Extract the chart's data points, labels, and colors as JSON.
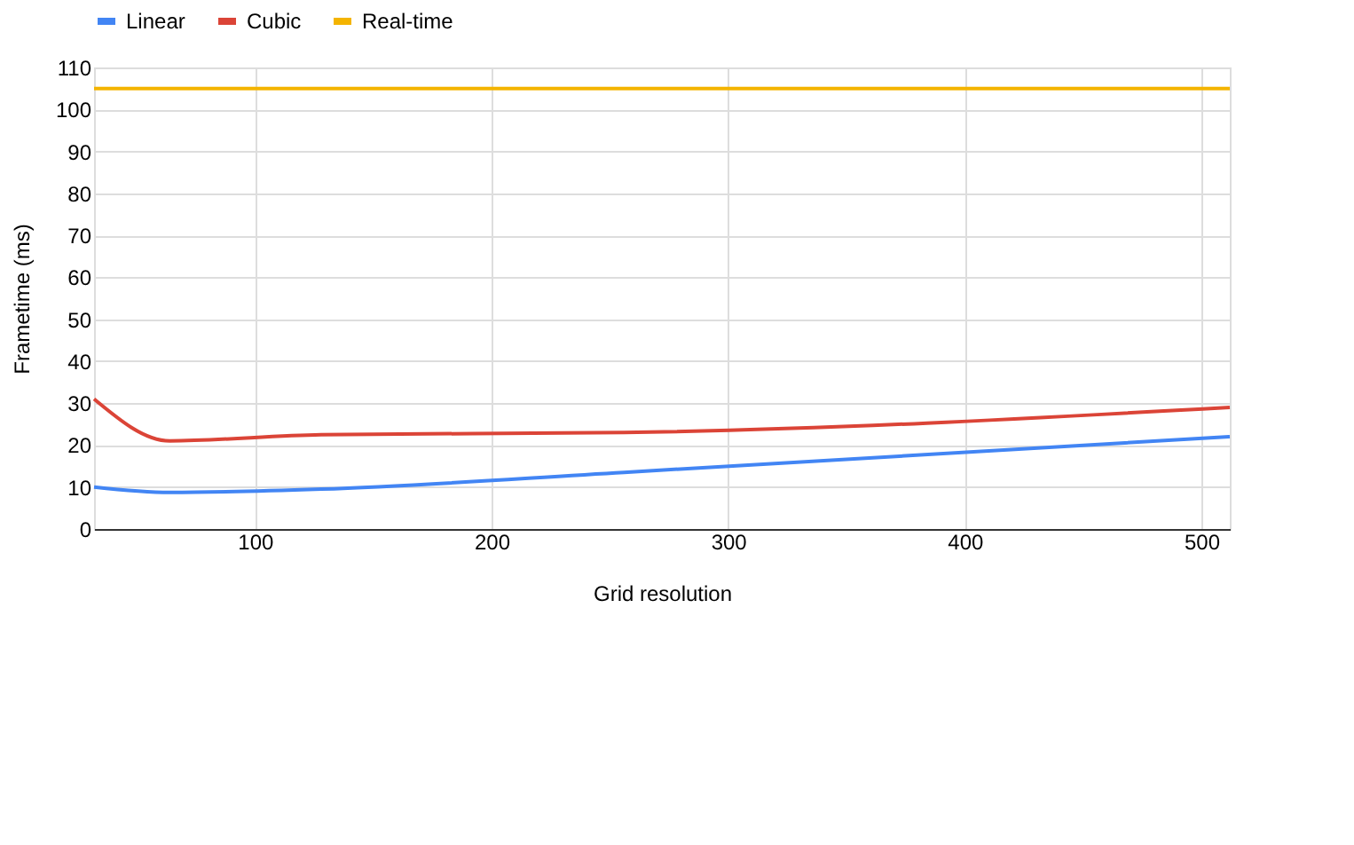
{
  "chart_data": {
    "type": "line",
    "xlabel": "Grid resolution",
    "ylabel": "Frametime (ms)",
    "x": [
      32,
      64,
      128,
      256,
      512
    ],
    "series": [
      {
        "name": "Linear",
        "color": "#4285f4",
        "values": [
          10,
          8.7,
          9.5,
          13.5,
          22
        ]
      },
      {
        "name": "Cubic",
        "color": "#db4437",
        "values": [
          31,
          21,
          22.5,
          23,
          29
        ]
      },
      {
        "name": "Real-time",
        "color": "#f4b400",
        "values": [
          105,
          105,
          105,
          105,
          105
        ]
      }
    ],
    "xlim": [
      32,
      512
    ],
    "xticks": [
      100,
      200,
      300,
      400,
      500
    ],
    "ylim": [
      0,
      110
    ],
    "yticks": [
      0,
      10,
      20,
      30,
      40,
      50,
      60,
      70,
      80,
      90,
      100,
      110
    ],
    "grid": true,
    "legend": "top",
    "marker": "none",
    "line_style": "solid"
  }
}
